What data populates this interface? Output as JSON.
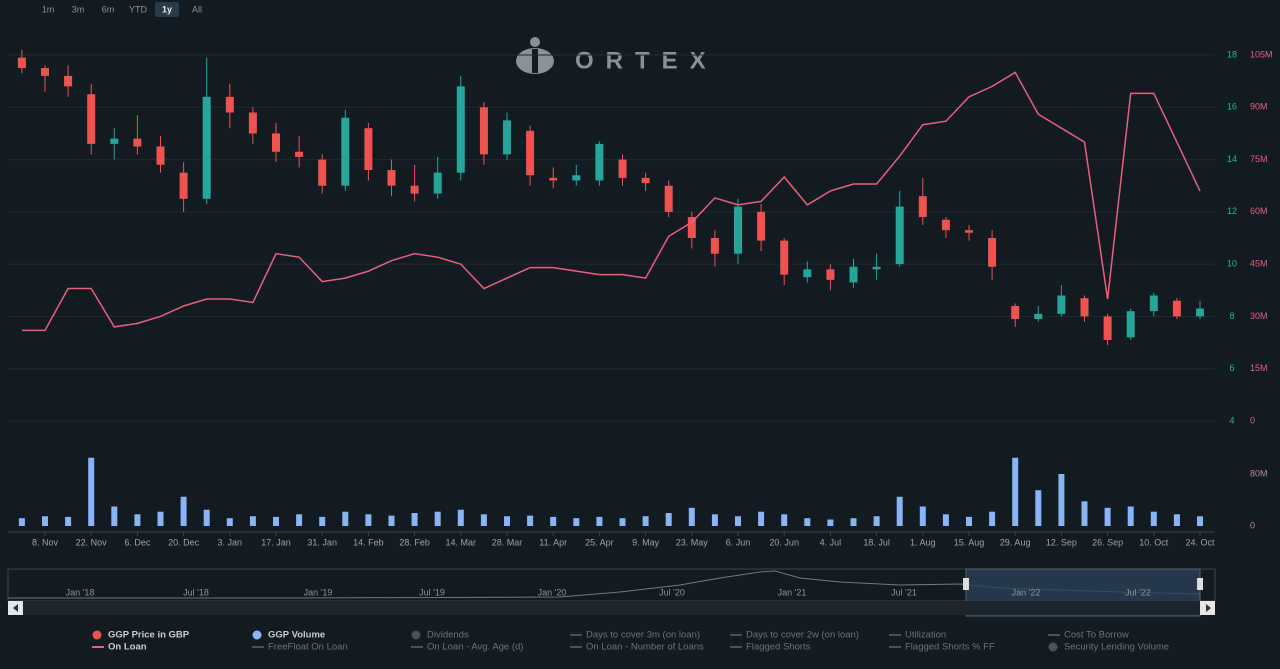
{
  "range_buttons": [
    "1m",
    "3m",
    "6m",
    "YTD",
    "1y",
    "All"
  ],
  "active_range": "1y",
  "logo": "ORTEX",
  "chart_data": [
    {
      "type": "candlestick",
      "categories": [
        null,
        "8. Nov",
        null,
        "22. Nov",
        null,
        "6. Dec",
        null,
        "20. Dec",
        null,
        "3. Jan",
        null,
        "17. Jan",
        null,
        "31. Jan",
        null,
        "14. Feb",
        null,
        "28. Feb",
        null,
        "14. Mar",
        null,
        "28. Mar",
        null,
        "11. Apr",
        null,
        "25. Apr",
        null,
        "9. May",
        null,
        "23. May",
        null,
        "6. Jun",
        null,
        "20. Jun",
        null,
        "4. Jul",
        null,
        "18. Jul",
        null,
        "1. Aug",
        null,
        "15. Aug",
        null,
        "29. Aug",
        null,
        "12. Sep",
        null,
        "26. Sep",
        null,
        "10. Oct",
        null,
        "24. Oct"
      ],
      "series": [
        {
          "name": "GGP Price in GBP",
          "color": "#ef5350",
          "up_color": "#26a69a",
          "open": [
            17.9,
            17.5,
            17.2,
            16.5,
            14.6,
            14.8,
            14.5,
            13.5,
            12.5,
            16.4,
            15.8,
            15.0,
            14.3,
            14.0,
            13.0,
            15.2,
            13.6,
            13.0,
            12.7,
            13.5,
            16.0,
            14.2,
            15.1,
            13.3,
            13.2,
            13.2,
            14.0,
            13.3,
            13.0,
            11.8,
            11.0,
            10.4,
            12.0,
            10.9,
            9.5,
            9.8,
            9.3,
            9.8,
            10.0,
            12.6,
            11.7,
            11.3,
            11.0,
            8.4,
            7.9,
            8.1,
            8.7,
            8.0,
            7.2,
            8.2,
            8.6,
            8.0
          ],
          "high": [
            18.2,
            17.6,
            17.6,
            16.9,
            15.2,
            15.7,
            14.9,
            13.9,
            17.9,
            16.9,
            16.0,
            15.4,
            14.9,
            14.2,
            15.9,
            15.4,
            14.0,
            13.8,
            14.1,
            17.2,
            16.2,
            15.8,
            15.3,
            13.7,
            13.8,
            14.7,
            14.2,
            13.5,
            13.2,
            12.0,
            11.3,
            12.5,
            12.3,
            11.0,
            10.1,
            10.0,
            10.2,
            10.4,
            12.8,
            13.3,
            11.8,
            11.5,
            11.3,
            8.5,
            8.4,
            9.2,
            8.8,
            8.1,
            8.3,
            8.9,
            8.7,
            8.6
          ],
          "low": [
            17.3,
            16.6,
            16.4,
            14.2,
            14.0,
            14.2,
            13.5,
            12.0,
            12.3,
            15.2,
            14.6,
            13.9,
            13.7,
            12.7,
            12.8,
            13.2,
            12.6,
            12.4,
            12.5,
            13.2,
            13.8,
            14.0,
            13.0,
            12.9,
            13.0,
            13.0,
            13.0,
            12.8,
            11.8,
            10.6,
            9.9,
            10.0,
            10.5,
            9.2,
            9.3,
            9.0,
            9.1,
            9.4,
            9.9,
            11.5,
            11.0,
            10.9,
            9.4,
            7.6,
            7.8,
            8.0,
            7.8,
            6.9,
            7.1,
            8.0,
            7.9,
            7.9
          ],
          "close": [
            17.5,
            17.2,
            16.8,
            14.6,
            14.8,
            14.5,
            13.8,
            12.5,
            16.4,
            15.8,
            15.0,
            14.3,
            14.1,
            13.0,
            15.6,
            13.6,
            13.0,
            12.7,
            13.5,
            16.8,
            14.2,
            15.5,
            13.4,
            13.2,
            13.4,
            14.6,
            13.3,
            13.1,
            12.0,
            11.0,
            10.4,
            12.2,
            10.9,
            9.6,
            9.8,
            9.4,
            9.9,
            9.9,
            12.2,
            11.8,
            11.3,
            11.2,
            9.9,
            7.9,
            8.1,
            8.8,
            8.0,
            7.1,
            8.2,
            8.8,
            8.0,
            8.3
          ]
        },
        {
          "name": "On Loan",
          "type": "line",
          "color": "#e8607f",
          "axis": "y2",
          "values": [
            26000000,
            26000000,
            38000000,
            38000000,
            27000000,
            28000000,
            30000000,
            33000000,
            35000000,
            35000000,
            34000000,
            48000000,
            47000000,
            40000000,
            41000000,
            43000000,
            46000000,
            48000000,
            47000000,
            45000000,
            38000000,
            41000000,
            44000000,
            44000000,
            43000000,
            42000000,
            42000000,
            41000000,
            53000000,
            57000000,
            64000000,
            62000000,
            63000000,
            70000000,
            62000000,
            66000000,
            68000000,
            68000000,
            76000000,
            85000000,
            86000000,
            93000000,
            96000000,
            100000000,
            88000000,
            84000000,
            80000000,
            35000000,
            94000000,
            94000000,
            80000000,
            66000000
          ]
        }
      ],
      "ylim": [
        4,
        18
      ],
      "yticks": [
        4,
        6,
        8,
        10,
        12,
        14,
        16,
        18
      ],
      "y2lim": [
        0,
        105000000
      ],
      "y2ticks": [
        0,
        {
          "value": 15000000,
          "label": "15M"
        },
        {
          "value": 30000000,
          "label": "30M"
        },
        {
          "value": 45000000,
          "label": "45M"
        },
        {
          "value": 60000000,
          "label": "60M"
        },
        {
          "value": 75000000,
          "label": "75M"
        },
        {
          "value": 90000000,
          "label": "90M"
        },
        {
          "value": 105000000,
          "label": "105M"
        }
      ],
      "grid": true
    },
    {
      "type": "bar",
      "series": [
        {
          "name": "GGP Volume",
          "color": "#8ab4f8",
          "values": [
            12000000,
            15000000,
            14000000,
            105000000,
            30000000,
            18000000,
            22000000,
            45000000,
            25000000,
            12000000,
            15000000,
            14000000,
            18000000,
            14000000,
            22000000,
            18000000,
            16000000,
            20000000,
            22000000,
            25000000,
            18000000,
            15000000,
            16000000,
            14000000,
            12000000,
            14000000,
            12000000,
            15000000,
            20000000,
            28000000,
            18000000,
            15000000,
            22000000,
            18000000,
            12000000,
            10000000,
            12000000,
            15000000,
            45000000,
            30000000,
            18000000,
            14000000,
            22000000,
            105000000,
            55000000,
            80000000,
            38000000,
            28000000,
            30000000,
            22000000,
            18000000,
            15000000
          ]
        }
      ],
      "ylim": [
        0,
        120000000
      ],
      "yticks": [
        0,
        {
          "value": 80000000,
          "label": "80M"
        }
      ]
    }
  ],
  "navigator": {
    "labels": [
      "Jan '18",
      "Jul '18",
      "Jan '19",
      "Jul '19",
      "Jan '20",
      "Jul '20",
      "Jan '21",
      "Jul '21",
      "Jan '22",
      "Jul '22"
    ]
  },
  "legend_inactive": [
    "Dividends",
    "Days to cover 3m (on loan)",
    "Days to cover 2w (on loan)",
    "Utilization",
    "Cost To Borrow",
    "FreeFloat On Loan",
    "On Loan - Avg. Age (d)",
    "On Loan - Number of Loans",
    "Flagged Shorts",
    "Flagged Shorts % FF",
    "Security Lending Volume"
  ]
}
